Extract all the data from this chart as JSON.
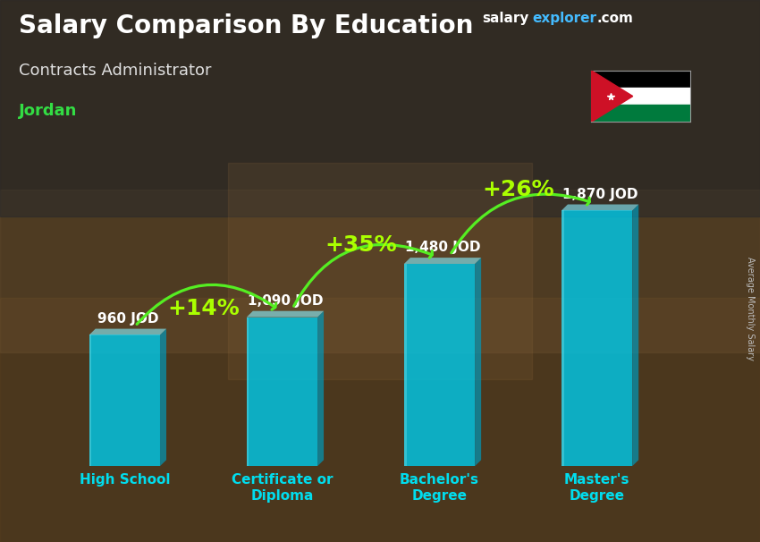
{
  "title": "Salary Comparison By Education",
  "subtitle": "Contracts Administrator",
  "country": "Jordan",
  "ylabel": "Average Monthly Salary",
  "categories": [
    "High School",
    "Certificate or\nDiploma",
    "Bachelor's\nDegree",
    "Master's\nDegree"
  ],
  "values": [
    960,
    1090,
    1480,
    1870
  ],
  "value_labels": [
    "960 JOD",
    "1,090 JOD",
    "1,480 JOD",
    "1,870 JOD"
  ],
  "pct_labels": [
    "+14%",
    "+35%",
    "+26%"
  ],
  "bar_face_color": "#00c8e8",
  "bar_right_color": "#0099bb",
  "bar_left_color": "#55eeff",
  "bar_top_color": "#88f0ff",
  "title_color": "#ffffff",
  "subtitle_color": "#e0e0e0",
  "country_color": "#33dd44",
  "pct_color": "#aaff00",
  "value_label_color": "#ffffff",
  "xlabel_color": "#00ddee",
  "arrow_color": "#55ee22",
  "arrow_head_color": "#33cc00",
  "fig_bg_color": "#3a2a1a",
  "ylim": [
    0,
    2300
  ],
  "bar_alpha": 0.82,
  "brand_text": "salaryexplorer.com",
  "brand_salary_color": "#ffffff",
  "brand_explorer_color": "#44bbff",
  "brand_com_color": "#ffffff",
  "pct_fontsize": 18,
  "val_fontsize": 11,
  "title_fontsize": 20,
  "subtitle_fontsize": 13,
  "country_fontsize": 13,
  "xlabel_fontsize": 11
}
